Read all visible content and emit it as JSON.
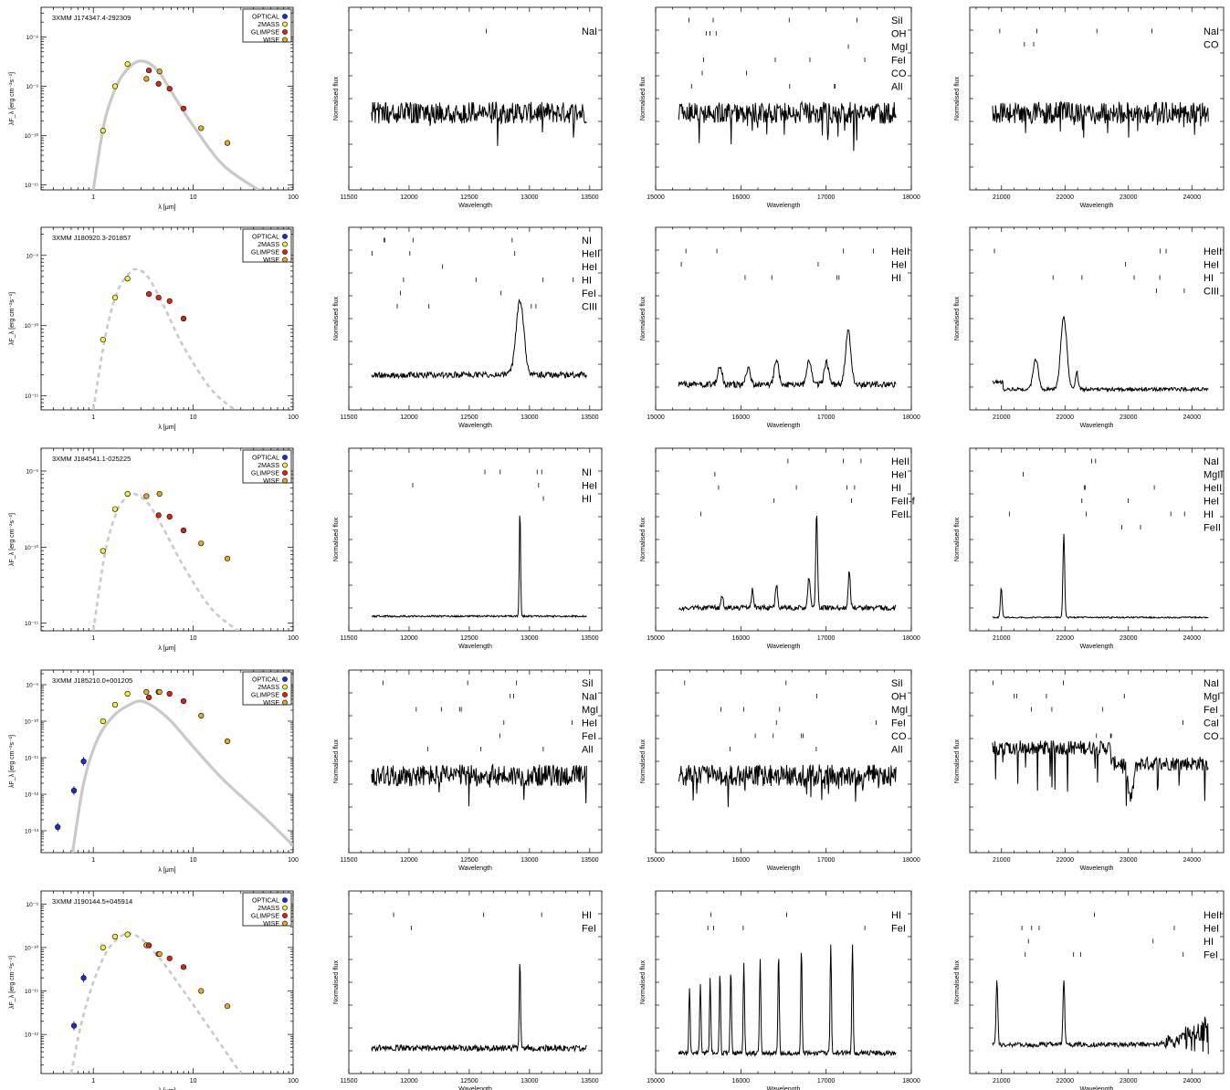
{
  "chart_data": {
    "type": "figure-grid",
    "sed_legend": [
      {
        "label": "OPTICAL",
        "color": "#1a2fd6"
      },
      {
        "label": "2MASS",
        "color": "#f2ee3a"
      },
      {
        "label": "GLIMPSE",
        "color": "#d62718"
      },
      {
        "label": "WISE",
        "color": "#e6a829"
      }
    ],
    "labels": {
      "sed_xlabel": "λ [μm]",
      "sed_ylabel": "λF_λ [erg cm⁻²s⁻¹]",
      "spec_xlabel": "Wavelength",
      "spec_ylabel": "Normalised flux"
    },
    "sed_xticks": [
      "1",
      "10",
      "100"
    ],
    "sed_xrange": [
      0.3,
      100
    ],
    "spec_xticks": {
      "J": [
        "11500",
        "12000",
        "12500",
        "13000",
        "13500"
      ],
      "H": [
        "15000",
        "16000",
        "17000",
        "18000"
      ],
      "K": [
        "21000",
        "22000",
        "23000",
        "24000"
      ]
    },
    "spec_xrange": {
      "J": [
        11500,
        13600
      ],
      "H": [
        15000,
        18000
      ],
      "K": [
        20500,
        24500
      ]
    },
    "rows": [
      {
        "source": "3XMM J174347.4-292309",
        "sed": {
          "ylog": [
            -11.1,
            -7.4
          ],
          "yticks": [
            {
              "v": -11,
              "t": "10⁻¹¹"
            },
            {
              "v": -10,
              "t": "10⁻¹⁰"
            },
            {
              "v": -9,
              "t": "10⁻⁹"
            },
            {
              "v": -8,
              "t": "10⁻⁸"
            }
          ],
          "model": "solid",
          "model_curve": [
            [
              1.0,
              -11.1
            ],
            [
              1.3,
              -9.7
            ],
            [
              1.8,
              -8.9
            ],
            [
              2.5,
              -8.55
            ],
            [
              3.3,
              -8.5
            ],
            [
              4.5,
              -8.7
            ],
            [
              6,
              -9.1
            ],
            [
              10,
              -9.8
            ],
            [
              20,
              -10.6
            ],
            [
              45,
              -11.1
            ]
          ],
          "points": [
            {
              "x": 1.25,
              "y": -9.9,
              "band": "2MASS"
            },
            {
              "x": 1.65,
              "y": -9.0,
              "band": "2MASS"
            },
            {
              "x": 2.2,
              "y": -8.55,
              "band": "2MASS"
            },
            {
              "x": 3.4,
              "y": -8.85,
              "band": "WISE"
            },
            {
              "x": 3.6,
              "y": -8.68,
              "band": "GLIMPSE"
            },
            {
              "x": 4.5,
              "y": -8.95,
              "band": "GLIMPSE"
            },
            {
              "x": 4.6,
              "y": -8.7,
              "band": "WISE"
            },
            {
              "x": 5.8,
              "y": -9.05,
              "band": "GLIMPSE"
            },
            {
              "x": 8.0,
              "y": -9.45,
              "band": "GLIMPSE"
            },
            {
              "x": 12,
              "y": -9.85,
              "band": "WISE"
            },
            {
              "x": 22,
              "y": -10.15,
              "band": "WISE"
            }
          ]
        },
        "J": {
          "lines": [
            "NaI"
          ],
          "profile": "absorption"
        },
        "H": {
          "lines": [
            "SiI",
            "OH",
            "MgI",
            "FeI",
            "CO",
            "AlI"
          ],
          "profile": "absorption"
        },
        "K": {
          "lines": [
            "NaI",
            "CO"
          ],
          "profile": "absorption"
        }
      },
      {
        "source": "3XMM J180920.3-201857",
        "sed": {
          "ylog": [
            -11.2,
            -8.6
          ],
          "yticks": [
            {
              "v": -11,
              "t": "10⁻¹¹"
            },
            {
              "v": -10,
              "t": "10⁻¹⁰"
            },
            {
              "v": -9,
              "t": "10⁻⁹"
            }
          ],
          "model": "dashed",
          "model_curve": [
            [
              1.0,
              -11.2
            ],
            [
              1.3,
              -10.2
            ],
            [
              1.7,
              -9.55
            ],
            [
              2.3,
              -9.25
            ],
            [
              2.7,
              -9.2
            ],
            [
              3.5,
              -9.3
            ],
            [
              5,
              -9.7
            ],
            [
              8,
              -10.3
            ],
            [
              15,
              -10.9
            ],
            [
              26,
              -11.2
            ]
          ],
          "points": [
            {
              "x": 1.25,
              "y": -10.2,
              "band": "2MASS"
            },
            {
              "x": 1.65,
              "y": -9.6,
              "band": "2MASS"
            },
            {
              "x": 2.2,
              "y": -9.33,
              "band": "2MASS"
            },
            {
              "x": 3.6,
              "y": -9.55,
              "band": "GLIMPSE"
            },
            {
              "x": 4.5,
              "y": -9.6,
              "band": "GLIMPSE"
            },
            {
              "x": 5.8,
              "y": -9.65,
              "band": "GLIMPSE"
            },
            {
              "x": 8.0,
              "y": -9.9,
              "band": "GLIMPSE"
            }
          ]
        },
        "J": {
          "lines": [
            "NI",
            "HeII",
            "HeI",
            "HI",
            "FeI",
            "CIII"
          ],
          "profile": "emission-J"
        },
        "H": {
          "lines": [
            "HeII",
            "HeI",
            "HI"
          ],
          "profile": "emission-H"
        },
        "K": {
          "lines": [
            "HeII",
            "HeI",
            "HI",
            "CIII"
          ],
          "profile": "emission-K"
        }
      },
      {
        "source": "3XMM J184541.1-025225",
        "sed": {
          "ylog": [
            -11.1,
            -8.7
          ],
          "yticks": [
            {
              "v": -11,
              "t": "10⁻¹¹"
            },
            {
              "v": -10,
              "t": "10⁻¹⁰"
            },
            {
              "v": -9,
              "t": "10⁻⁹"
            }
          ],
          "model": "dashed",
          "model_curve": [
            [
              1.0,
              -11.1
            ],
            [
              1.3,
              -10.1
            ],
            [
              1.7,
              -9.55
            ],
            [
              2.2,
              -9.33
            ],
            [
              2.6,
              -9.3
            ],
            [
              3.5,
              -9.42
            ],
            [
              5,
              -9.75
            ],
            [
              8,
              -10.25
            ],
            [
              15,
              -10.8
            ],
            [
              28,
              -11.1
            ]
          ],
          "points": [
            {
              "x": 1.25,
              "y": -10.05,
              "band": "2MASS"
            },
            {
              "x": 1.65,
              "y": -9.5,
              "band": "2MASS"
            },
            {
              "x": 2.2,
              "y": -9.3,
              "band": "2MASS"
            },
            {
              "x": 3.4,
              "y": -9.33,
              "band": "WISE"
            },
            {
              "x": 4.5,
              "y": -9.58,
              "band": "GLIMPSE"
            },
            {
              "x": 4.6,
              "y": -9.3,
              "band": "WISE"
            },
            {
              "x": 5.8,
              "y": -9.6,
              "band": "GLIMPSE"
            },
            {
              "x": 8.0,
              "y": -9.78,
              "band": "GLIMPSE"
            },
            {
              "x": 12,
              "y": -9.95,
              "band": "WISE"
            },
            {
              "x": 22,
              "y": -10.15,
              "band": "WISE"
            }
          ]
        },
        "J": {
          "lines": [
            "NI",
            "HeI",
            "HI"
          ],
          "profile": "spike-J"
        },
        "H": {
          "lines": [
            "HeII",
            "HeI",
            "HI",
            "FeII-f",
            "FeII"
          ],
          "profile": "emission-H2"
        },
        "K": {
          "lines": [
            "NaI",
            "MgII",
            "HeII",
            "HeI",
            "HI",
            "FeII"
          ],
          "profile": "spike-K"
        }
      },
      {
        "source": "3XMM J185210.0+001205",
        "sed": {
          "ylog": [
            -13.6,
            -8.6
          ],
          "yticks": [
            {
              "v": -13,
              "t": "10⁻¹³"
            },
            {
              "v": -12,
              "t": "10⁻¹²"
            },
            {
              "v": -11,
              "t": "10⁻¹¹"
            },
            {
              "v": -10,
              "t": "10⁻¹⁰"
            },
            {
              "v": -9,
              "t": "10⁻⁹"
            }
          ],
          "model": "solid",
          "model_curve": [
            [
              0.62,
              -13.6
            ],
            [
              0.8,
              -11.7
            ],
            [
              1.1,
              -10.5
            ],
            [
              1.6,
              -9.85
            ],
            [
              2.3,
              -9.55
            ],
            [
              3.0,
              -9.45
            ],
            [
              4,
              -9.6
            ],
            [
              6,
              -10.0
            ],
            [
              10,
              -10.7
            ],
            [
              20,
              -11.6
            ],
            [
              50,
              -12.6
            ],
            [
              100,
              -13.4
            ]
          ],
          "points": [
            {
              "x": 0.44,
              "y": -12.9,
              "band": "OPTICAL"
            },
            {
              "x": 0.64,
              "y": -11.9,
              "band": "OPTICAL"
            },
            {
              "x": 0.8,
              "y": -11.1,
              "band": "OPTICAL"
            },
            {
              "x": 1.25,
              "y": -10.0,
              "band": "2MASS"
            },
            {
              "x": 1.65,
              "y": -9.55,
              "band": "2MASS"
            },
            {
              "x": 2.2,
              "y": -9.25,
              "band": "2MASS"
            },
            {
              "x": 3.4,
              "y": -9.2,
              "band": "WISE"
            },
            {
              "x": 3.6,
              "y": -9.35,
              "band": "GLIMPSE"
            },
            {
              "x": 4.5,
              "y": -9.2,
              "band": "GLIMPSE"
            },
            {
              "x": 4.6,
              "y": -9.2,
              "band": "WISE"
            },
            {
              "x": 5.8,
              "y": -9.25,
              "band": "GLIMPSE"
            },
            {
              "x": 8.0,
              "y": -9.45,
              "band": "GLIMPSE"
            },
            {
              "x": 12,
              "y": -9.85,
              "band": "WISE"
            },
            {
              "x": 22,
              "y": -10.55,
              "band": "WISE"
            }
          ]
        },
        "J": {
          "lines": [
            "SiI",
            "NaI",
            "MgI",
            "HeI",
            "FeI",
            "AlI"
          ],
          "profile": "absorption"
        },
        "H": {
          "lines": [
            "SiI",
            "OH",
            "MgI",
            "FeI",
            "CO",
            "AlI"
          ],
          "profile": "absorption"
        },
        "K": {
          "lines": [
            "NaI",
            "MgI",
            "FeI",
            "CaI",
            "CO"
          ],
          "profile": "absorption-K2"
        }
      },
      {
        "source": "3XMM J190144.5+045914",
        "sed": {
          "ylog": [
            -12.9,
            -8.7
          ],
          "yticks": [
            {
              "v": -12,
              "t": "10⁻¹²"
            },
            {
              "v": -11,
              "t": "10⁻¹¹"
            },
            {
              "v": -10,
              "t": "10⁻¹⁰"
            },
            {
              "v": -9,
              "t": "10⁻⁹"
            }
          ],
          "model": "dashed",
          "model_curve": [
            [
              0.6,
              -12.9
            ],
            [
              0.75,
              -11.8
            ],
            [
              1.0,
              -10.8
            ],
            [
              1.4,
              -10.05
            ],
            [
              2.0,
              -9.7
            ],
            [
              2.4,
              -9.68
            ],
            [
              3.2,
              -9.85
            ],
            [
              5,
              -10.35
            ],
            [
              8,
              -11.0
            ],
            [
              15,
              -11.9
            ],
            [
              30,
              -12.9
            ]
          ],
          "points": [
            {
              "x": 0.64,
              "y": -11.8,
              "band": "OPTICAL"
            },
            {
              "x": 0.8,
              "y": -10.7,
              "band": "OPTICAL"
            },
            {
              "x": 1.25,
              "y": -10.0,
              "band": "2MASS"
            },
            {
              "x": 1.65,
              "y": -9.75,
              "band": "2MASS"
            },
            {
              "x": 2.2,
              "y": -9.7,
              "band": "2MASS"
            },
            {
              "x": 3.4,
              "y": -9.95,
              "band": "WISE"
            },
            {
              "x": 3.6,
              "y": -9.95,
              "band": "GLIMPSE"
            },
            {
              "x": 4.5,
              "y": -10.15,
              "band": "GLIMPSE"
            },
            {
              "x": 4.6,
              "y": -10.15,
              "band": "WISE"
            },
            {
              "x": 5.8,
              "y": -10.25,
              "band": "GLIMPSE"
            },
            {
              "x": 8.0,
              "y": -10.45,
              "band": "GLIMPSE"
            },
            {
              "x": 12,
              "y": -11.0,
              "band": "WISE"
            },
            {
              "x": 22,
              "y": -11.35,
              "band": "WISE"
            }
          ]
        },
        "J": {
          "lines": [
            "HI",
            "FeI"
          ],
          "profile": "spike-J2"
        },
        "H": {
          "lines": [
            "HI",
            "FeI"
          ],
          "profile": "brackett"
        },
        "K": {
          "lines": [
            "HeII",
            "HeI",
            "HI",
            "FeI"
          ],
          "profile": "emission-K3"
        }
      }
    ]
  }
}
